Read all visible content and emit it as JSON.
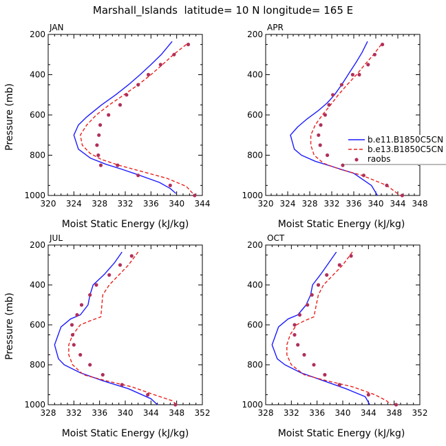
{
  "figure_title": "Marshall_Islands  latitude= 10 N longitude= 165 E",
  "colors": {
    "model_a": "#1a1aff",
    "model_b": "#e8201a",
    "raobs": "#b0305a"
  },
  "legend": {
    "entries": [
      "b.e11.B1850C5CN",
      "b.e13.B1850C5CN",
      "raobs"
    ],
    "panel": "APR",
    "placement": "right-middle"
  },
  "chart_data": [
    {
      "type": "line",
      "title": "JAN",
      "xlabel": "Moist Static Energy (kJ/kg)",
      "ylabel": "Pressure (mb)",
      "xlim": [
        320,
        344
      ],
      "ylim": [
        1000,
        200
      ],
      "xticks": [
        "320",
        "324",
        "328",
        "332",
        "336",
        "340",
        "344"
      ],
      "yticks": [
        "200",
        "400",
        "600",
        "800",
        "1000"
      ],
      "series": [
        {
          "name": "b.e11.B1850C5CN",
          "style": "solid",
          "x": [
            339.3,
            337.6,
            336.0,
            334.3,
            332.5,
            330.5,
            328.3,
            326.0,
            324.7,
            324.0,
            324.7,
            326.6,
            329.0,
            331.5,
            333.8,
            337.3,
            339.0,
            339.9
          ],
          "y": [
            235,
            300,
            350,
            400,
            450,
            500,
            550,
            610,
            650,
            700,
            770,
            815,
            845,
            870,
            895,
            935,
            965,
            990
          ]
        },
        {
          "name": "b.e13.B1850C5CN",
          "style": "dashed",
          "x": [
            341.5,
            339.5,
            337.8,
            336.0,
            334.0,
            331.8,
            329.5,
            327.5,
            326.0,
            325.0,
            325.3,
            326.5,
            328.2,
            331.0,
            334.5,
            338.5,
            341.5,
            342.8
          ],
          "y": [
            250,
            300,
            350,
            400,
            450,
            500,
            550,
            600,
            650,
            700,
            750,
            790,
            820,
            850,
            880,
            915,
            955,
            1000
          ]
        },
        {
          "name": "raobs",
          "style": "markers",
          "x": [
            341.8,
            339.6,
            337.5,
            335.6,
            334.0,
            332.2,
            331.2,
            329.4,
            328.1,
            327.9,
            327.6,
            327.8,
            328.2,
            330.8,
            334.0,
            339.0,
            342.8
          ],
          "y": [
            250,
            300,
            350,
            400,
            450,
            500,
            550,
            600,
            650,
            700,
            750,
            800,
            850,
            850,
            900,
            950,
            1000
          ]
        }
      ]
    },
    {
      "type": "line",
      "title": "APR",
      "xlabel": "Moist Static Energy (kJ/kg)",
      "ylabel": "",
      "xlim": [
        320,
        348
      ],
      "ylim": [
        1000,
        200
      ],
      "xticks": [
        "320",
        "324",
        "328",
        "332",
        "336",
        "340",
        "344",
        "348"
      ],
      "yticks": [
        "200",
        "400",
        "600",
        "800",
        "1000"
      ],
      "series": [
        {
          "name": "b.e11.B1850C5CN",
          "style": "solid",
          "x": [
            338.5,
            337.5,
            336.4,
            335.2,
            333.8,
            332.5,
            331.2,
            329.5,
            327.5,
            325.8,
            324.5,
            325.2,
            326.5,
            329.0,
            332.5,
            336.0,
            339.2,
            340.3
          ],
          "y": [
            235,
            290,
            340,
            390,
            450,
            500,
            540,
            580,
            620,
            660,
            700,
            770,
            800,
            830,
            860,
            890,
            950,
            1000
          ]
        },
        {
          "name": "b.e13.B1850C5CN",
          "style": "dashed",
          "x": [
            341.0,
            339.6,
            338.0,
            336.5,
            334.8,
            333.2,
            331.8,
            330.3,
            329.0,
            328.2,
            328.2,
            328.8,
            330.5,
            333.5,
            337.5,
            342.0,
            344.4
          ],
          "y": [
            250,
            300,
            350,
            400,
            450,
            500,
            550,
            600,
            650,
            700,
            750,
            800,
            840,
            870,
            900,
            950,
            1000
          ]
        },
        {
          "name": "raobs",
          "style": "markers",
          "x": [
            341.2,
            339.8,
            338.6,
            337.0,
            335.8,
            333.8,
            332.2,
            331.5,
            330.8,
            330.0,
            329.6,
            329.9,
            331.2,
            334.0,
            337.8,
            342.0,
            344.8
          ],
          "y": [
            250,
            300,
            350,
            400,
            400,
            450,
            500,
            550,
            600,
            650,
            700,
            750,
            800,
            850,
            900,
            950,
            1000
          ]
        }
      ]
    },
    {
      "type": "line",
      "title": "JUL",
      "xlabel": "Moist Static Energy (kJ/kg)",
      "ylabel": "Pressure (mb)",
      "xlim": [
        328,
        352
      ],
      "ylim": [
        1000,
        200
      ],
      "xticks": [
        "328",
        "332",
        "336",
        "340",
        "344",
        "348",
        "352"
      ],
      "yticks": [
        "200",
        "400",
        "600",
        "800",
        "1000"
      ],
      "series": [
        {
          "name": "b.e11.B1850C5CN",
          "style": "solid",
          "x": [
            339.5,
            338.3,
            336.8,
            335.0,
            334.5,
            334.2,
            333.0,
            331.5,
            330.0,
            329.0,
            329.6,
            330.5,
            333.0,
            336.5,
            340.5,
            344.0,
            345.0
          ],
          "y": [
            235,
            290,
            345,
            400,
            450,
            500,
            550,
            570,
            610,
            700,
            770,
            800,
            840,
            880,
            920,
            970,
            1000
          ]
        },
        {
          "name": "b.e13.B1850C5CN",
          "style": "dashed",
          "x": [
            342.0,
            340.5,
            339.0,
            337.5,
            336.5,
            336.2,
            334.5,
            333.0,
            331.8,
            331.2,
            331.2,
            331.8,
            333.5,
            337.0,
            341.0,
            344.5,
            347.3,
            348.0
          ],
          "y": [
            235,
            300,
            350,
            400,
            450,
            560,
            580,
            600,
            650,
            700,
            750,
            800,
            850,
            880,
            910,
            950,
            980,
            1000
          ]
        },
        {
          "name": "raobs",
          "style": "markers",
          "x": [
            341.0,
            339.2,
            337.5,
            335.5,
            334.5,
            333.2,
            332.5,
            331.7,
            331.8,
            332.0,
            333.0,
            334.5,
            336.5,
            339.5,
            343.5,
            347.8
          ],
          "y": [
            255,
            300,
            350,
            400,
            450,
            500,
            550,
            600,
            650,
            700,
            750,
            800,
            850,
            900,
            950,
            1000
          ]
        }
      ]
    },
    {
      "type": "line",
      "title": "OCT",
      "xlabel": "Moist Static Energy (kJ/kg)",
      "ylabel": "",
      "xlim": [
        328,
        352
      ],
      "ylim": [
        1000,
        200
      ],
      "xticks": [
        "328",
        "332",
        "336",
        "340",
        "344",
        "348",
        "352"
      ],
      "yticks": [
        "200",
        "400",
        "600",
        "800",
        "1000"
      ],
      "series": [
        {
          "name": "b.e11.B1850C5CN",
          "style": "solid",
          "x": [
            339.0,
            337.8,
            336.6,
            335.3,
            335.0,
            334.3,
            333.0,
            331.5,
            330.0,
            329.0,
            329.8,
            331.0,
            333.5,
            337.0,
            340.5,
            343.5,
            344.2
          ],
          "y": [
            235,
            290,
            345,
            400,
            450,
            500,
            550,
            570,
            610,
            700,
            770,
            800,
            840,
            880,
            920,
            960,
            1000
          ]
        },
        {
          "name": "b.e13.B1850C5CN",
          "style": "dashed",
          "x": [
            341.5,
            340.0,
            338.5,
            337.0,
            336.2,
            335.5,
            334.0,
            332.8,
            331.8,
            331.3,
            331.3,
            332.0,
            334.0,
            337.5,
            341.5,
            345.0,
            346.8,
            347.5
          ],
          "y": [
            235,
            300,
            350,
            400,
            450,
            560,
            580,
            600,
            650,
            700,
            750,
            800,
            850,
            880,
            910,
            950,
            980,
            1000
          ]
        },
        {
          "name": "raobs",
          "style": "markers",
          "x": [
            341.3,
            339.5,
            337.5,
            336.2,
            335.2,
            334.5,
            333.3,
            332.5,
            332.5,
            333.0,
            334.0,
            335.5,
            337.2,
            339.5,
            344.0,
            348.3
          ],
          "y": [
            255,
            300,
            350,
            400,
            450,
            500,
            550,
            600,
            650,
            700,
            750,
            800,
            850,
            900,
            950,
            1000
          ]
        }
      ]
    }
  ]
}
